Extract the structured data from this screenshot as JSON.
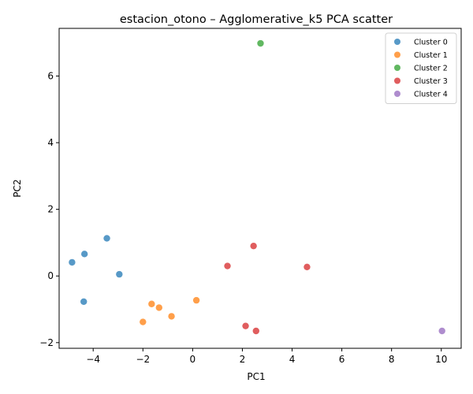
{
  "chart_data": {
    "type": "scatter",
    "title": "estacion_otono – Agglomerative_k5 PCA scatter",
    "xlabel": "PC1",
    "ylabel": "PC2",
    "xlim": [
      -5.37,
      10.8
    ],
    "ylim": [
      -2.17,
      7.43
    ],
    "xticks": [
      -4,
      -2,
      0,
      2,
      4,
      6,
      8,
      10
    ],
    "yticks": [
      -2,
      0,
      2,
      4,
      6
    ],
    "grid": false,
    "legend_position": "top-right",
    "series": [
      {
        "name": "Cluster 0",
        "color": "#1f77b4",
        "points": [
          {
            "x": -3.45,
            "y": 1.13
          },
          {
            "x": -4.35,
            "y": 0.66
          },
          {
            "x": -4.85,
            "y": 0.41
          },
          {
            "x": -2.95,
            "y": 0.05
          },
          {
            "x": -4.38,
            "y": -0.77
          }
        ]
      },
      {
        "name": "Cluster 1",
        "color": "#ff7f0e",
        "points": [
          {
            "x": 0.15,
            "y": -0.73
          },
          {
            "x": -1.65,
            "y": -0.84
          },
          {
            "x": -1.35,
            "y": -0.95
          },
          {
            "x": -0.85,
            "y": -1.21
          },
          {
            "x": -2.0,
            "y": -1.38
          }
        ]
      },
      {
        "name": "Cluster 2",
        "color": "#2ca02c",
        "points": [
          {
            "x": 2.73,
            "y": 6.98
          }
        ]
      },
      {
        "name": "Cluster 3",
        "color": "#d62728",
        "points": [
          {
            "x": 2.45,
            "y": 0.9
          },
          {
            "x": 1.4,
            "y": 0.3
          },
          {
            "x": 4.6,
            "y": 0.27
          },
          {
            "x": 2.13,
            "y": -1.5
          },
          {
            "x": 2.55,
            "y": -1.65
          }
        ]
      },
      {
        "name": "Cluster 4",
        "color": "#9467bd",
        "points": [
          {
            "x": 10.03,
            "y": -1.65
          }
        ]
      }
    ]
  }
}
